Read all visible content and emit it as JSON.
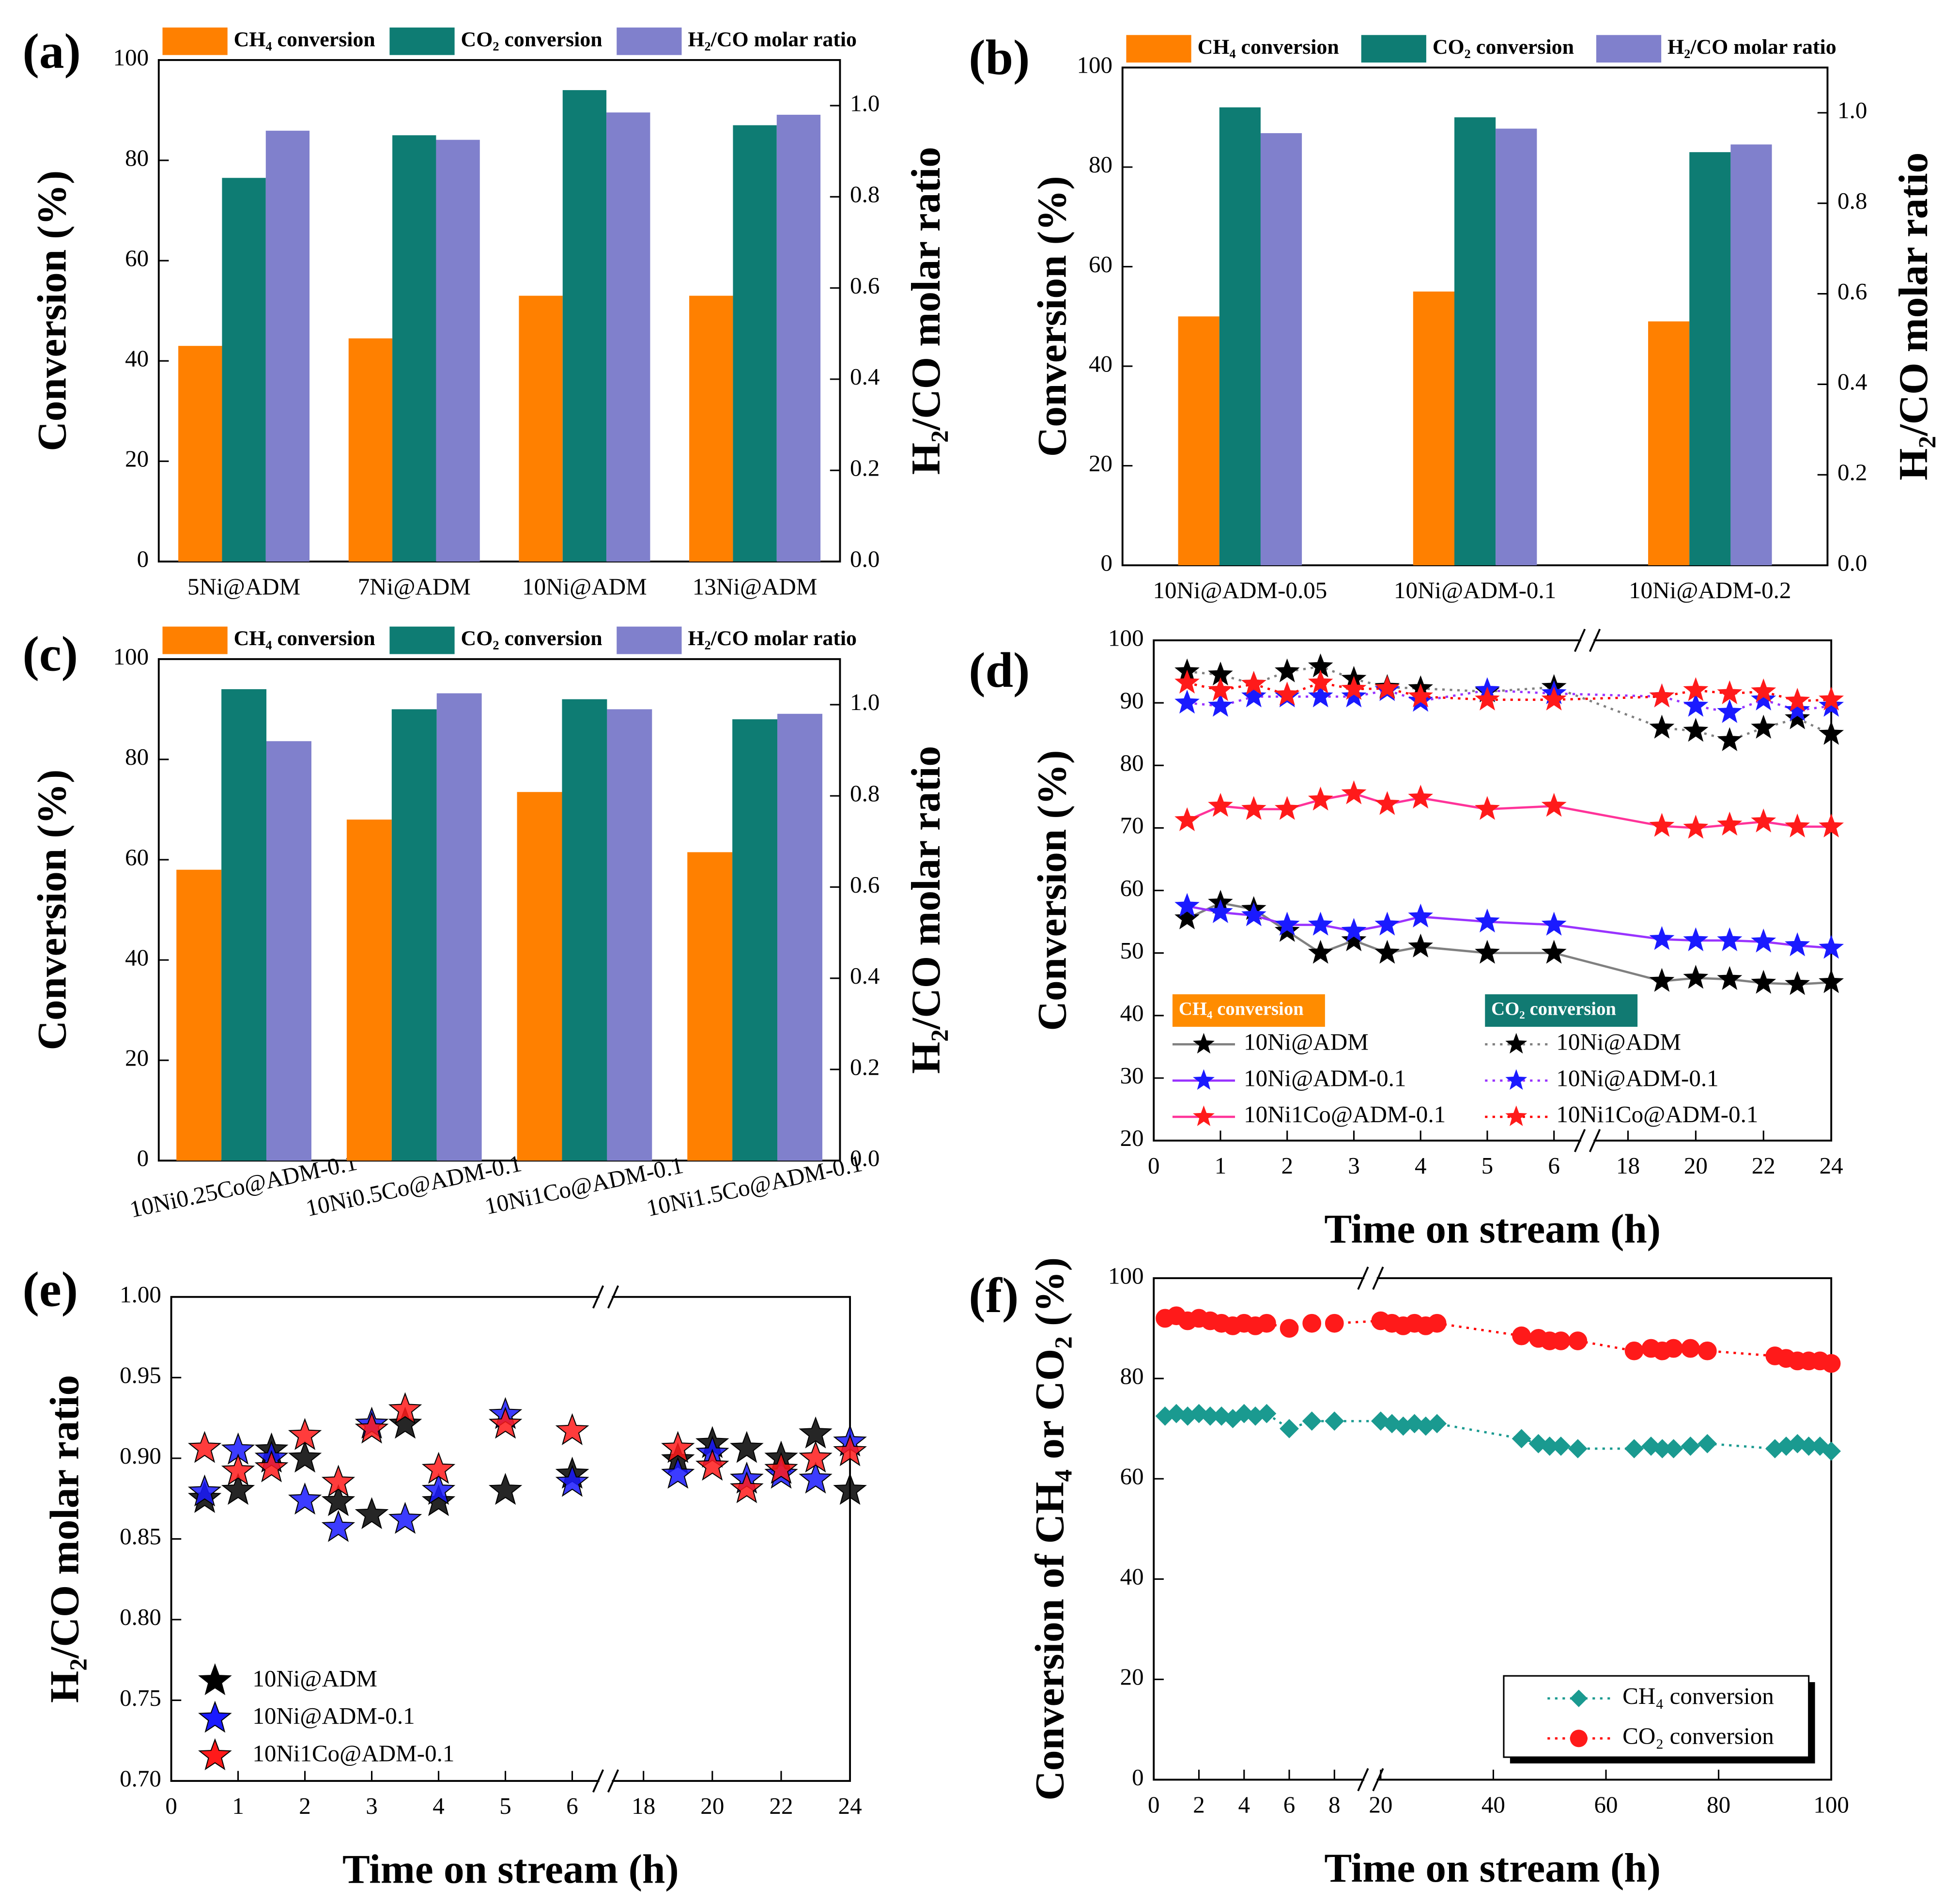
{
  "chart_data": [
    {
      "type": "bar",
      "label": "(a)",
      "categories": [
        "5Ni@ADM",
        "7Ni@ADM",
        "10Ni@ADM",
        "13Ni@ADM"
      ],
      "series": [
        {
          "name": "CH₄ conversion",
          "color": "#ff8000",
          "values": [
            43,
            44.5,
            53,
            53
          ]
        },
        {
          "name": "CO₂ conversion",
          "color": "#0e7c73",
          "values": [
            76.5,
            85,
            94,
            87
          ]
        },
        {
          "name": "H₂/CO molar ratio",
          "color": "#8080cc",
          "axis": "y2",
          "values": [
            0.945,
            0.925,
            0.985,
            0.98
          ]
        }
      ],
      "ylabel": "Conversion (%)",
      "y2label": "H₂/CO molar ratio",
      "ylim": [
        0,
        100
      ],
      "yticks": [
        0,
        20,
        40,
        60,
        80,
        100
      ],
      "y2lim": [
        0,
        1.1
      ],
      "y2ticks": [
        {
          "value": 0,
          "label": "0.0"
        },
        0.2,
        0.4,
        0.6,
        0.8,
        {
          "value": 1,
          "label": "1.0"
        }
      ]
    },
    {
      "type": "bar",
      "label": "(b)",
      "categories": [
        "10Ni@ADM-0.05",
        "10Ni@ADM-0.1",
        "10Ni@ADM-0.2"
      ],
      "series": [
        {
          "name": "CH₄ conversion",
          "color": "#ff8000",
          "values": [
            50,
            55,
            49
          ]
        },
        {
          "name": "CO₂ conversion",
          "color": "#0e7c73",
          "values": [
            92,
            90,
            83
          ]
        },
        {
          "name": "H₂/CO molar ratio",
          "color": "#8080cc",
          "axis": "y2",
          "values": [
            0.955,
            0.965,
            0.93
          ]
        }
      ],
      "ylabel": "Conversion (%)",
      "y2label": "H₂/CO molar ratio",
      "ylim": [
        0,
        100
      ],
      "yticks": [
        0,
        20,
        40,
        60,
        80,
        100
      ],
      "y2lim": [
        0,
        1.1
      ],
      "y2ticks": [
        {
          "value": 0,
          "label": "0.0"
        },
        0.2,
        0.4,
        0.6,
        0.8,
        {
          "value": 1,
          "label": "1.0"
        }
      ]
    },
    {
      "type": "bar",
      "label": "(c)",
      "categories": [
        "10Ni0.25Co@ADM-0.1",
        "10Ni0.5Co@ADM-0.1",
        "10Ni1Co@ADM-0.1",
        "10Ni1.5Co@ADM-0.1"
      ],
      "series": [
        {
          "name": "CH₄ conversion",
          "color": "#ff8000",
          "values": [
            58,
            68,
            73.5,
            61.5
          ]
        },
        {
          "name": "CO₂ conversion",
          "color": "#0e7c73",
          "values": [
            94,
            90,
            92,
            88
          ]
        },
        {
          "name": "H₂/CO molar ratio",
          "color": "#8080cc",
          "axis": "y2",
          "values": [
            0.92,
            1.025,
            0.99,
            0.98
          ]
        }
      ],
      "ylabel": "Conversion (%)",
      "y2label": "H₂/CO molar ratio",
      "ylim": [
        0,
        100
      ],
      "yticks": [
        0,
        20,
        40,
        60,
        80,
        100
      ],
      "y2lim": [
        0,
        1.1
      ],
      "y2ticks": [
        {
          "value": 0,
          "label": "0.0"
        },
        0.2,
        0.4,
        0.6,
        0.8,
        {
          "value": 1,
          "label": "1.0"
        }
      ]
    },
    {
      "type": "line",
      "label": "(d)",
      "xlabel": "Time on stream (h)",
      "ylabel": "Conversion (%)",
      "x": [
        0.5,
        1,
        1.5,
        2,
        2.5,
        3,
        3.5,
        4,
        5,
        6,
        19,
        20,
        21,
        22,
        23,
        24
      ],
      "xlim": [
        0,
        24
      ],
      "xbreak": [
        6.5,
        16.8
      ],
      "xticks": [
        0,
        1,
        2,
        3,
        4,
        5,
        6,
        18,
        20,
        22,
        24
      ],
      "ylim": [
        20,
        100
      ],
      "yticks": [
        20,
        30,
        40,
        50,
        60,
        70,
        80,
        90,
        100
      ],
      "legend_groups": [
        "CH₄ conversion",
        "CO₂ conversion"
      ],
      "legend_group_colors": [
        "#ff8c00",
        "#117a72"
      ],
      "series": [
        {
          "name": "10Ni@ADM",
          "group": 0,
          "color": "#808080",
          "marker_color": "#000000",
          "marker": "star",
          "line_style": "solid",
          "values": [
            55.5,
            58,
            57,
            53.5,
            50,
            52,
            50,
            51,
            50,
            50,
            45.5,
            46,
            45.8,
            45.2,
            45,
            45.3
          ]
        },
        {
          "name": "10Ni@ADM-0.1",
          "group": 0,
          "color": "#9933ff",
          "marker_color": "#1a1aff",
          "marker": "star",
          "line_style": "solid",
          "values": [
            57.5,
            56.5,
            56,
            54.5,
            54.5,
            53.5,
            54.5,
            55.8,
            55,
            54.5,
            52.2,
            52,
            52,
            51.8,
            51.2,
            50.8
          ]
        },
        {
          "name": "10Ni1Co@ADM-0.1",
          "group": 0,
          "color": "#ff3399",
          "marker_color": "#ff1a1a",
          "marker": "star",
          "line_style": "solid",
          "values": [
            71.2,
            73.5,
            73,
            73,
            74.5,
            75.5,
            73.8,
            74.8,
            73,
            73.5,
            70.3,
            70,
            70.5,
            71,
            70.2,
            70.2
          ]
        },
        {
          "name": "10Ni@ADM",
          "group": 1,
          "color": "#808080",
          "marker_color": "#000000",
          "marker": "star",
          "line_style": "dotted",
          "values": [
            95,
            94.5,
            93,
            95,
            95.8,
            93.8,
            92.5,
            92.3,
            91.8,
            92.5,
            86,
            85.5,
            84,
            86,
            87.5,
            85
          ]
        },
        {
          "name": "10Ni@ADM-0.1",
          "group": 1,
          "color": "#9933ff",
          "marker_color": "#1a1aff",
          "marker": "star",
          "line_style": "dotted",
          "values": [
            90,
            89.5,
            91,
            91,
            91,
            91,
            92,
            90.3,
            92,
            91.5,
            91,
            89.5,
            88.5,
            90.5,
            88.8,
            89.5
          ]
        },
        {
          "name": "10Ni1Co@ADM-0.1",
          "group": 1,
          "color": "#ff0000",
          "marker_color": "#ff1a1a",
          "marker": "star",
          "line_style": "dotted",
          "values": [
            93.2,
            92,
            93,
            91.3,
            93.2,
            92.2,
            92.3,
            91,
            90.5,
            90.5,
            91,
            92,
            91.5,
            91.8,
            90.3,
            90.5
          ]
        }
      ]
    },
    {
      "type": "scatter",
      "label": "(e)",
      "xlabel": "Time on stream (h)",
      "ylabel": "H₂/CO molar ratio",
      "x": [
        0.5,
        1,
        1.5,
        2,
        2.5,
        3,
        3.5,
        4,
        5,
        6,
        19,
        20,
        21,
        22,
        23,
        24
      ],
      "xlim": [
        0,
        24
      ],
      "xbreak": [
        6.5,
        16.9
      ],
      "xticks": [
        0,
        1,
        2,
        3,
        4,
        5,
        6,
        18,
        20,
        22,
        24
      ],
      "ylim": [
        0.7,
        1
      ],
      "yticks": [
        {
          "value": 0.7,
          "label": "0.70"
        },
        0.75,
        {
          "value": 0.8,
          "label": "0.80"
        },
        0.85,
        {
          "value": 0.9,
          "label": "0.90"
        },
        0.95,
        {
          "value": 1,
          "label": "1.00"
        }
      ],
      "legend": "lower left",
      "series": [
        {
          "name": "10Ni@ADM",
          "color": "#000000",
          "marker": "star",
          "values": [
            0.875,
            0.88,
            0.905,
            0.9,
            0.873,
            0.865,
            0.921,
            0.873,
            0.88,
            0.89,
            0.899,
            0.909,
            0.906,
            0.9,
            0.915,
            0.88
          ]
        },
        {
          "name": "10Ni@ADM-0.1",
          "color": "#1a1aff",
          "marker": "star",
          "values": [
            0.879,
            0.905,
            0.9,
            0.874,
            0.857,
            0.921,
            0.862,
            0.88,
            0.927,
            0.885,
            0.89,
            0.903,
            0.887,
            0.89,
            0.887,
            0.91
          ]
        },
        {
          "name": "10Ni1Co@ADM-0.1",
          "color": "#ff1a1a",
          "marker": "star",
          "values": [
            0.906,
            0.892,
            0.894,
            0.914,
            0.885,
            0.918,
            0.93,
            0.893,
            0.921,
            0.917,
            0.906,
            0.895,
            0.881,
            0.893,
            0.9,
            0.904
          ]
        }
      ]
    },
    {
      "type": "line",
      "label": "(f)",
      "xlabel": "Time on stream (h)",
      "ylabel": "Conversion of CH₄ or CO₂ (%)",
      "x": [
        0.5,
        1,
        1.5,
        2,
        2.5,
        3,
        3.5,
        4,
        4.5,
        5,
        6,
        7,
        8,
        20,
        22,
        24,
        26,
        28,
        30,
        45,
        48,
        50,
        52,
        55,
        65,
        68,
        70,
        72,
        75,
        78,
        90,
        92,
        94,
        96,
        98,
        100
      ],
      "xlim": [
        0,
        100
      ],
      "xbreak": [
        9.6,
        18.2
      ],
      "xticks": [
        0,
        2,
        4,
        6,
        8,
        20,
        40,
        60,
        80,
        100
      ],
      "ylim": [
        0,
        100
      ],
      "yticks": [
        0,
        20,
        40,
        60,
        80,
        100
      ],
      "legend": "lower right",
      "series": [
        {
          "name": "CH₄ conversion",
          "color": "#1a9a90",
          "marker_color": "#1a9a90",
          "marker": "diamond",
          "line_style": "dotted",
          "values": [
            72.5,
            73,
            72.5,
            73,
            72.5,
            72.5,
            72,
            73,
            72.5,
            73,
            70,
            71.5,
            71.5,
            71.5,
            71,
            70.5,
            71,
            70.5,
            71,
            68,
            67,
            66.5,
            66.5,
            66,
            66,
            66.5,
            66,
            66,
            66.5,
            67,
            66,
            66.5,
            67,
            66.5,
            66.5,
            65.5
          ]
        },
        {
          "name": "CO₂ conversion",
          "color": "#ff0000",
          "marker_color": "#ff1a1a",
          "marker": "circle",
          "line_style": "dotted",
          "values": [
            92,
            92.5,
            91.5,
            92,
            91.5,
            91,
            90.5,
            91,
            90.5,
            91,
            90,
            91,
            91,
            91.5,
            91,
            90.5,
            91,
            90.5,
            91,
            88.5,
            88,
            87.5,
            87.5,
            87.5,
            85.5,
            86,
            85.5,
            86,
            86,
            85.5,
            84.5,
            84,
            83.5,
            83.5,
            83.5,
            83
          ]
        }
      ]
    }
  ]
}
